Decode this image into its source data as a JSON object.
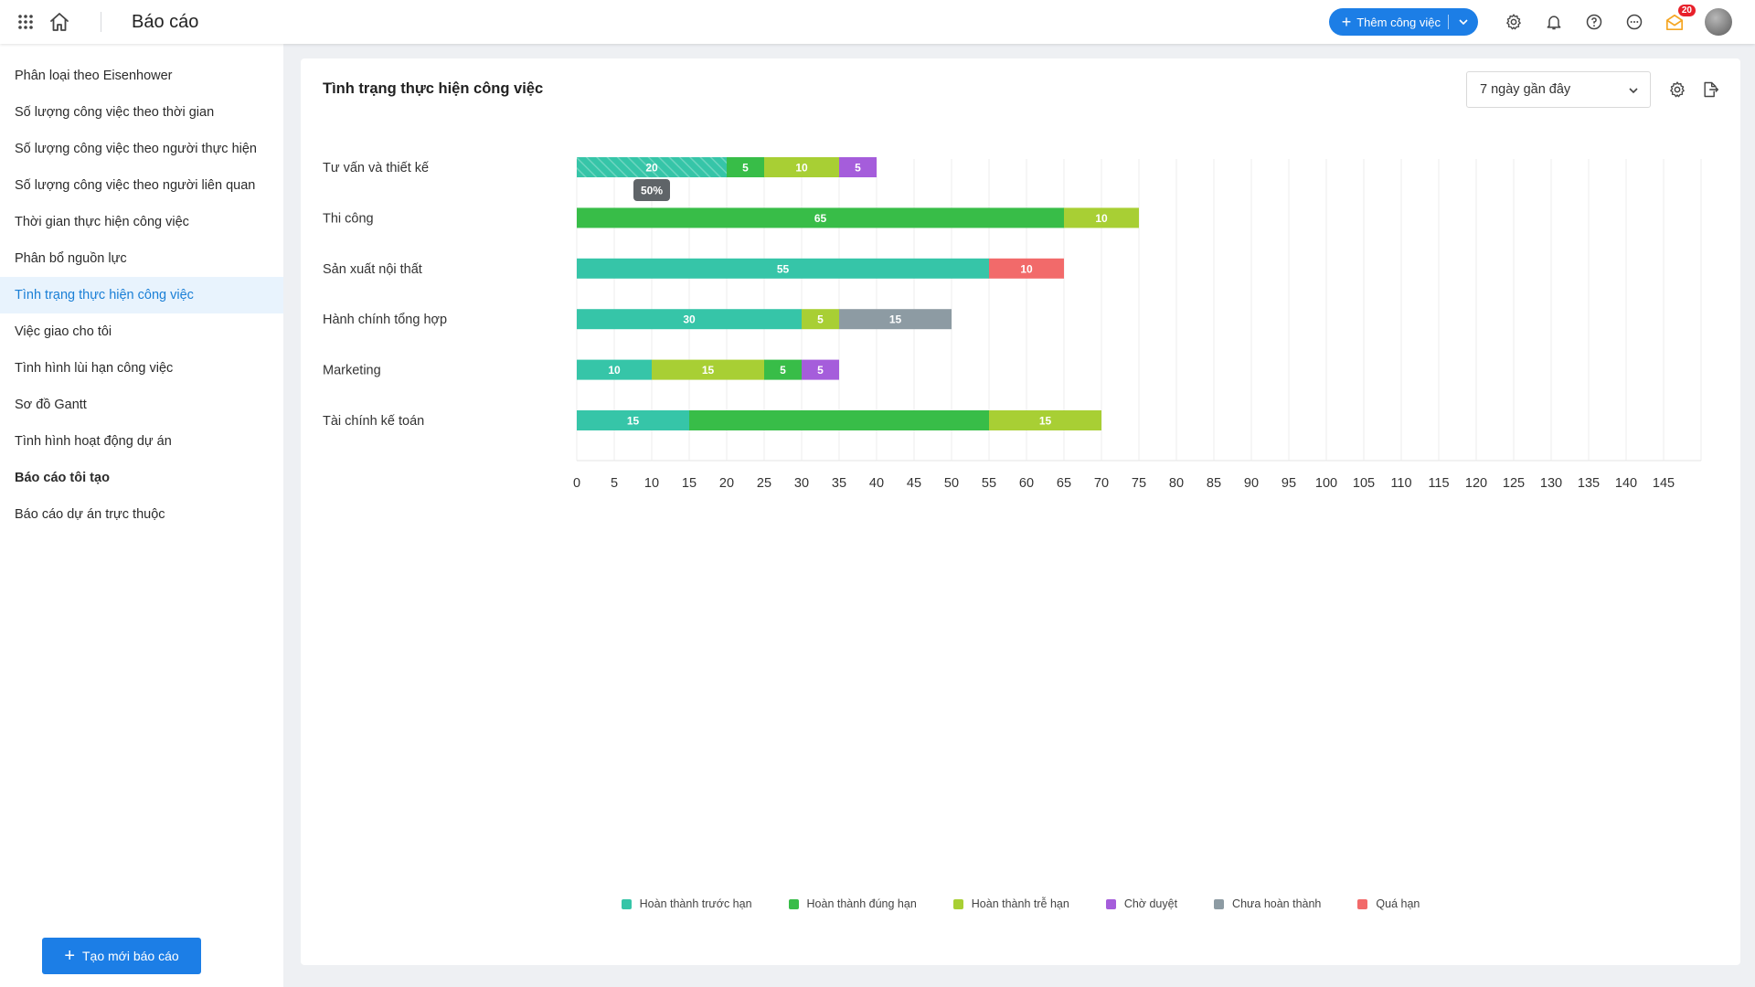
{
  "header": {
    "title": "Báo cáo",
    "add_task_label": "Thêm công việc",
    "notification_count": "20"
  },
  "sidebar": {
    "items": [
      {
        "label": "Phân loại theo Eisenhower"
      },
      {
        "label": "Số lượng công việc theo thời gian"
      },
      {
        "label": "Số lượng công việc theo người thực hiện"
      },
      {
        "label": "Số lượng công việc theo người liên quan"
      },
      {
        "label": "Thời gian thực hiện công việc"
      },
      {
        "label": "Phân bổ nguồn lực"
      },
      {
        "label": "Tình trạng thực hiện công việc",
        "active": true
      },
      {
        "label": "Việc giao cho tôi"
      },
      {
        "label": "Tình hình lùi hạn công việc"
      },
      {
        "label": "Sơ đồ Gantt"
      },
      {
        "label": "Tình hình hoạt động dự án"
      },
      {
        "label": "Báo cáo tôi tạo",
        "bold": true
      },
      {
        "label": "Báo cáo dự án trực thuộc"
      }
    ],
    "create_label": "Tạo mới báo cáo"
  },
  "report": {
    "title": "Tình trạng thực hiện công việc",
    "range_value": "7 ngày gần đây"
  },
  "colors": {
    "early": "#36c5a8",
    "ontime": "#38bd48",
    "late": "#a8cf34",
    "pending": "#a55ddb",
    "incomplete": "#8d9ba3",
    "overdue": "#f26a6a",
    "accent": "#1c7ee6"
  },
  "chart_data": {
    "type": "bar",
    "orientation": "horizontal",
    "stacked": true,
    "title": "",
    "xlabel": "",
    "ylabel": "",
    "xlim": [
      0,
      150
    ],
    "xticks": [
      0,
      5,
      10,
      15,
      20,
      25,
      30,
      35,
      40,
      45,
      50,
      55,
      60,
      65,
      70,
      75,
      80,
      85,
      90,
      95,
      100,
      105,
      110,
      115,
      120,
      125,
      130,
      135,
      140,
      145
    ],
    "grid": true,
    "legend_position": "bottom",
    "categories": [
      "Tư vấn và thiết kế",
      "Thi công",
      "Sản xuất nội thất",
      "Hành chính tổng hợp",
      "Marketing",
      "Tài chính kế toán"
    ],
    "series": [
      {
        "name": "Hoàn thành trước hạn",
        "key": "early",
        "values": [
          20,
          0,
          55,
          30,
          10,
          15
        ]
      },
      {
        "name": "Hoàn thành đúng hạn",
        "key": "ontime",
        "values": [
          5,
          65,
          0,
          0,
          5,
          40
        ]
      },
      {
        "name": "Hoàn thành trễ hạn",
        "key": "late",
        "values": [
          10,
          10,
          0,
          5,
          15,
          15
        ]
      },
      {
        "name": "Chờ duyệt",
        "key": "pending",
        "values": [
          5,
          0,
          0,
          0,
          5,
          0
        ]
      },
      {
        "name": "Chưa hoàn thành",
        "key": "incomplete",
        "values": [
          0,
          0,
          0,
          15,
          0,
          0
        ]
      },
      {
        "name": "Quá hạn",
        "key": "overdue",
        "values": [
          0,
          0,
          10,
          0,
          0,
          0
        ]
      }
    ],
    "segment_labels": [
      [
        "20",
        "5",
        "10",
        "5"
      ],
      [
        "65",
        "10"
      ],
      [
        "55",
        "10"
      ],
      [
        "30",
        "5",
        "15"
      ],
      [
        "10",
        "15",
        "5",
        "5"
      ],
      [
        "15",
        "",
        "15"
      ]
    ],
    "segment_order": [
      [
        "early",
        "ontime",
        "late",
        "pending"
      ],
      [
        "ontime",
        "late"
      ],
      [
        "early",
        "overdue"
      ],
      [
        "early",
        "late",
        "incomplete"
      ],
      [
        "early",
        "late",
        "ontime",
        "pending"
      ],
      [
        "early",
        "ontime",
        "late"
      ]
    ],
    "tooltip": {
      "category": "Tư vấn và thiết kế",
      "series": "Hoàn thành trước hạn",
      "text": "50%"
    }
  }
}
